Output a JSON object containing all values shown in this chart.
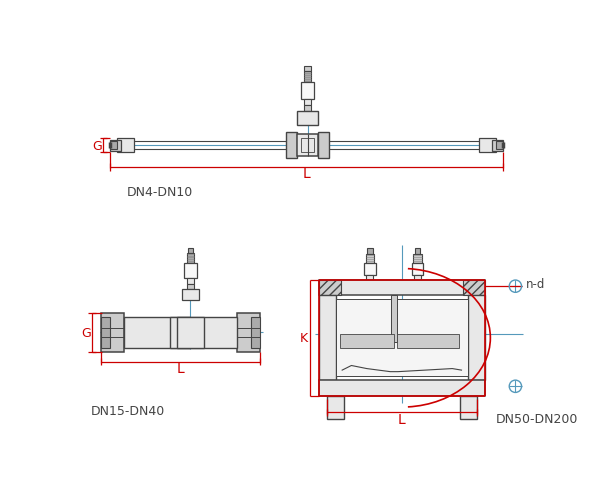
{
  "bg_color": "#ffffff",
  "line_color": "#444444",
  "red_color": "#cc0000",
  "blue_color": "#5599bb",
  "title1": "DN4-DN10",
  "title2": "DN15-DN40",
  "title3": "DN50-DN200",
  "label_L": "L",
  "label_G": "G",
  "label_K": "K",
  "label_nd": "n-d"
}
